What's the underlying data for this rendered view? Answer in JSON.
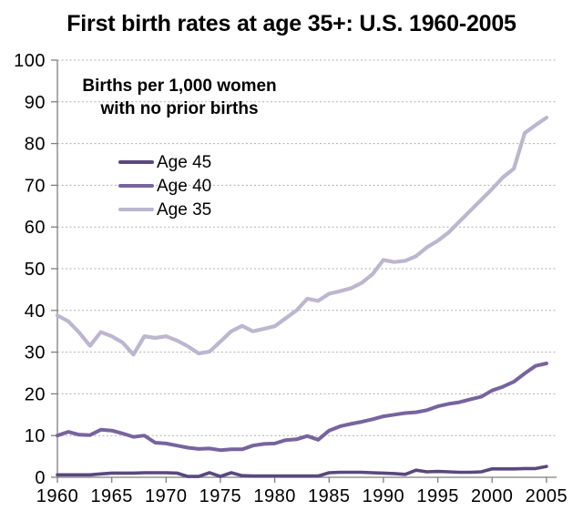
{
  "annotation": {
    "line1": "Births per 1,000 women",
    "line2": "with no prior births"
  },
  "chart_data": {
    "type": "line",
    "title": "First birth rates at age 35+: U.S. 1960-2005",
    "xlabel": "",
    "ylabel": "Births per 1,000 women with no prior births",
    "ylim": [
      0,
      100
    ],
    "yticks": [
      0,
      10,
      20,
      30,
      40,
      50,
      60,
      70,
      80,
      90,
      100
    ],
    "xticks": [
      1960,
      1965,
      1970,
      1975,
      1980,
      1985,
      1990,
      1995,
      2000,
      2005
    ],
    "grid": "horizontal-dotted",
    "legend_position": "upper-left-inside",
    "x": [
      1960,
      1961,
      1962,
      1963,
      1964,
      1965,
      1966,
      1967,
      1968,
      1969,
      1970,
      1971,
      1972,
      1973,
      1974,
      1975,
      1976,
      1977,
      1978,
      1979,
      1980,
      1981,
      1982,
      1983,
      1984,
      1985,
      1986,
      1987,
      1988,
      1989,
      1990,
      1991,
      1992,
      1993,
      1994,
      1995,
      1996,
      1997,
      1998,
      1999,
      2000,
      2001,
      2002,
      2003,
      2004,
      2005
    ],
    "series": [
      {
        "name": "Age 45",
        "color": "#5a487c",
        "values": [
          0.6,
          0.6,
          0.6,
          0.6,
          0.8,
          1.0,
          1.0,
          1.0,
          1.1,
          1.1,
          1.1,
          1.0,
          0.2,
          0.2,
          1.1,
          0.2,
          1.1,
          0.4,
          0.3,
          0.3,
          0.3,
          0.3,
          0.3,
          0.3,
          0.3,
          1.1,
          1.2,
          1.2,
          1.2,
          1.1,
          1.0,
          0.9,
          0.7,
          1.7,
          1.3,
          1.4,
          1.3,
          1.2,
          1.2,
          1.3,
          2.0,
          2.0,
          2.0,
          2.1,
          2.1,
          2.6
        ]
      },
      {
        "name": "Age 40",
        "color": "#77649e",
        "values": [
          10.0,
          10.9,
          10.2,
          10.1,
          11.4,
          11.2,
          10.5,
          9.7,
          10.0,
          8.3,
          8.1,
          7.6,
          7.1,
          6.8,
          6.9,
          6.5,
          6.7,
          6.7,
          7.6,
          8.0,
          8.1,
          8.9,
          9.1,
          9.9,
          9.0,
          11.2,
          12.2,
          12.8,
          13.3,
          13.9,
          14.6,
          15.0,
          15.4,
          15.6,
          16.1,
          17.0,
          17.6,
          18.0,
          18.7,
          19.3,
          20.8,
          21.7,
          22.9,
          24.9,
          26.7,
          27.3
        ]
      },
      {
        "name": "Age 35",
        "color": "#bcb6cf",
        "values": [
          38.8,
          37.4,
          34.7,
          31.5,
          34.8,
          33.8,
          32.3,
          29.4,
          33.8,
          33.4,
          33.8,
          32.8,
          31.4,
          29.7,
          30.1,
          32.5,
          35.0,
          36.3,
          35.0,
          35.6,
          36.2,
          38.1,
          40.0,
          42.8,
          42.3,
          44.0,
          44.6,
          45.3,
          46.6,
          48.7,
          52.1,
          51.6,
          51.9,
          53.0,
          55.1,
          56.7,
          58.7,
          61.3,
          63.9,
          66.5,
          69.1,
          71.9,
          74.0,
          82.5,
          84.4,
          86.2
        ]
      }
    ]
  },
  "colors": {
    "background": "#ffffff",
    "gridline": "#b0b0b0",
    "axis": "#7f7f7f",
    "text": "#000000"
  }
}
